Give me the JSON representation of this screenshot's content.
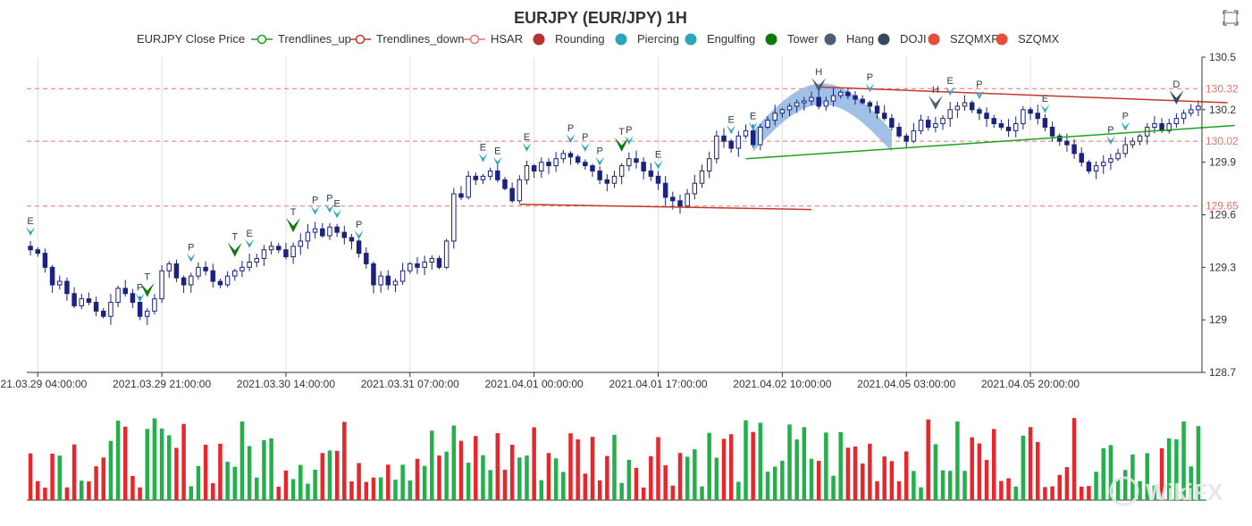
{
  "chart_data": {
    "type": "candlestick",
    "title": "EURJPY (EUR/JPY) 1H",
    "legend": [
      {
        "label": "EURJPY Close Price",
        "color": "#000080",
        "kind": "none"
      },
      {
        "label": "Trendlines_up",
        "color": "#20a020",
        "kind": "line-circle"
      },
      {
        "label": "Trendlines_down",
        "color": "#c0392b",
        "kind": "line-circle"
      },
      {
        "label": "HSAR",
        "color": "#e8736c",
        "kind": "line-circle"
      },
      {
        "label": "Rounding",
        "color": "#b83232",
        "kind": "dot"
      },
      {
        "label": "Piercing",
        "color": "#2aa6b8",
        "kind": "dot"
      },
      {
        "label": "Engulfing",
        "color": "#2aa6b8",
        "kind": "dot"
      },
      {
        "label": "Tower",
        "color": "#0e7a0e",
        "kind": "dot"
      },
      {
        "label": "Hang",
        "color": "#4b5e72",
        "kind": "dot"
      },
      {
        "label": "DOJI",
        "color": "#34495e",
        "kind": "dot"
      },
      {
        "label": "SZQMXR",
        "color": "#e74c3c",
        "kind": "dot"
      },
      {
        "label": "SZQMX",
        "color": "#e74c3c",
        "kind": "dot"
      }
    ],
    "x_tick_labels": [
      "2021.03.29 04:00:00",
      "2021.03.29 21:00:00",
      "2021.03.30 14:00:00",
      "2021.03.31 07:00:00",
      "2021.04.01 00:00:00",
      "2021.04.01 17:00:00",
      "2021.04.02 10:00:00",
      "2021.04.05 03:00:00",
      "2021.04.05 20:00:00"
    ],
    "y_ticks": [
      "130.5",
      "130.2",
      "129.9",
      "129.6",
      "129.3",
      "129",
      "128.7"
    ],
    "ylim": [
      128.7,
      130.5
    ],
    "hsar_levels": [
      {
        "value": 130.32,
        "label": "130.32"
      },
      {
        "value": 130.02,
        "label": "130.02"
      },
      {
        "value": 129.65,
        "label": "129.65"
      }
    ],
    "close": [
      129.4,
      129.38,
      129.3,
      129.2,
      129.22,
      129.15,
      129.08,
      129.12,
      129.1,
      129.05,
      129.02,
      129.1,
      129.18,
      129.15,
      129.1,
      129.02,
      129.05,
      129.12,
      129.28,
      129.32,
      129.24,
      129.2,
      129.25,
      129.3,
      129.28,
      129.22,
      129.2,
      129.25,
      129.28,
      129.3,
      129.33,
      129.35,
      129.4,
      129.42,
      129.4,
      129.36,
      129.42,
      129.45,
      129.5,
      129.52,
      129.48,
      129.53,
      129.5,
      129.47,
      129.45,
      129.38,
      129.32,
      129.2,
      129.25,
      129.2,
      129.22,
      129.28,
      129.32,
      129.3,
      129.33,
      129.35,
      129.3,
      129.45,
      129.72,
      129.7,
      129.82,
      129.8,
      129.82,
      129.85,
      129.8,
      129.75,
      129.68,
      129.8,
      129.88,
      129.85,
      129.9,
      129.88,
      129.92,
      129.95,
      129.93,
      129.9,
      129.88,
      129.85,
      129.8,
      129.78,
      129.82,
      129.88,
      129.92,
      129.9,
      129.85,
      129.82,
      129.78,
      129.7,
      129.68,
      129.65,
      129.72,
      129.78,
      129.85,
      129.92,
      130.05,
      130.02,
      129.98,
      130.05,
      130.08,
      130.0,
      130.1,
      130.14,
      130.18,
      130.2,
      130.22,
      130.24,
      130.25,
      130.27,
      130.22,
      130.25,
      130.28,
      130.3,
      130.28,
      130.26,
      130.24,
      130.22,
      130.18,
      130.15,
      130.1,
      130.05,
      130.02,
      130.08,
      130.14,
      130.1,
      130.12,
      130.15,
      130.2,
      130.22,
      130.24,
      130.2,
      130.18,
      130.15,
      130.12,
      130.1,
      130.08,
      130.12,
      130.2,
      130.18,
      130.15,
      130.1,
      130.05,
      130.02,
      130.0,
      129.95,
      129.9,
      129.85,
      129.88,
      129.9,
      129.92,
      129.95,
      130.0,
      130.02,
      130.05,
      130.1,
      130.12,
      130.08,
      130.12,
      130.15,
      130.18,
      130.2,
      130.22
    ],
    "markers": [
      {
        "i": 0,
        "label": "E",
        "kind": "piercing"
      },
      {
        "i": 15,
        "label": "P",
        "kind": "piercing"
      },
      {
        "i": 16,
        "label": "T",
        "kind": "tower"
      },
      {
        "i": 22,
        "label": "P",
        "kind": "piercing"
      },
      {
        "i": 28,
        "label": "T",
        "kind": "tower"
      },
      {
        "i": 30,
        "label": "E",
        "kind": "piercing"
      },
      {
        "i": 36,
        "label": "T",
        "kind": "tower"
      },
      {
        "i": 39,
        "label": "P",
        "kind": "piercing"
      },
      {
        "i": 41,
        "label": "P",
        "kind": "piercing"
      },
      {
        "i": 42,
        "label": "E",
        "kind": "piercing"
      },
      {
        "i": 45,
        "label": "P",
        "kind": "piercing"
      },
      {
        "i": 62,
        "label": "E",
        "kind": "piercing"
      },
      {
        "i": 64,
        "label": "E",
        "kind": "piercing"
      },
      {
        "i": 68,
        "label": "E",
        "kind": "piercing"
      },
      {
        "i": 74,
        "label": "P",
        "kind": "piercing"
      },
      {
        "i": 76,
        "label": "P",
        "kind": "piercing"
      },
      {
        "i": 78,
        "label": "P",
        "kind": "piercing"
      },
      {
        "i": 81,
        "label": "T",
        "kind": "tower"
      },
      {
        "i": 82,
        "label": "P",
        "kind": "piercing"
      },
      {
        "i": 86,
        "label": "E",
        "kind": "piercing"
      },
      {
        "i": 96,
        "label": "E",
        "kind": "piercing"
      },
      {
        "i": 99,
        "label": "E",
        "kind": "piercing"
      },
      {
        "i": 108,
        "label": "H",
        "kind": "hang"
      },
      {
        "i": 115,
        "label": "P",
        "kind": "piercing"
      },
      {
        "i": 124,
        "label": "H",
        "kind": "hang"
      },
      {
        "i": 126,
        "label": "E",
        "kind": "piercing"
      },
      {
        "i": 130,
        "label": "P",
        "kind": "piercing"
      },
      {
        "i": 139,
        "label": "E",
        "kind": "piercing"
      },
      {
        "i": 148,
        "label": "P",
        "kind": "piercing"
      },
      {
        "i": 150,
        "label": "P",
        "kind": "piercing"
      },
      {
        "i": 157,
        "label": "D",
        "kind": "doji"
      },
      {
        "i": 164,
        "label": "H",
        "kind": "hang"
      }
    ],
    "trendlines": [
      {
        "kind": "up",
        "from": {
          "i": 98,
          "v": 129.92
        },
        "to": {
          "i": 165,
          "v": 130.11
        }
      },
      {
        "kind": "down",
        "from": {
          "i": 108,
          "v": 130.33
        },
        "to": {
          "i": 164,
          "v": 130.24
        }
      },
      {
        "kind": "down",
        "from": {
          "i": 67,
          "v": 129.66
        },
        "to": {
          "i": 107,
          "v": 129.63
        }
      }
    ],
    "rounding": {
      "from_i": 99,
      "to_i": 118
    },
    "volume_colors": {
      "up": "#22b04b",
      "down": "#e8262b"
    }
  },
  "icons": {
    "toolbox": "restore-icon",
    "watermark": "wikifx-logo"
  },
  "watermark_text": "WikiFX"
}
